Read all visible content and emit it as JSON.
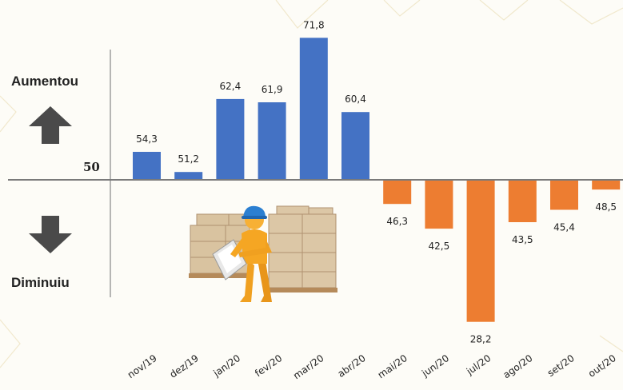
{
  "labels": {
    "up": "Aumentou",
    "down": "Diminuiu",
    "baseline": "50"
  },
  "icons": {
    "up_arrow": "arrow-up-icon",
    "down_arrow": "arrow-down-icon",
    "illustration": "warehouse-worker-clipboard-icon"
  },
  "colors": {
    "above": "#4472c4",
    "below": "#ed7d31"
  },
  "chart_data": {
    "type": "bar",
    "baseline": 50,
    "categories": [
      "nov/19",
      "dez/19",
      "jan/20",
      "fev/20",
      "mar/20",
      "abr/20",
      "mai/20",
      "jun/20",
      "jul/20",
      "ago/20",
      "set/20",
      "out/20"
    ],
    "values": [
      54.3,
      51.2,
      62.4,
      61.9,
      71.8,
      60.4,
      46.3,
      42.5,
      28.2,
      43.5,
      45.4,
      48.5
    ],
    "value_labels": [
      "54,3",
      "51,2",
      "62,4",
      "61,9",
      "71,8",
      "60,4",
      "46,3",
      "42,5",
      "28,2",
      "43,5",
      "45,4",
      "48,5"
    ],
    "title": "",
    "xlabel": "",
    "ylabel": ""
  }
}
